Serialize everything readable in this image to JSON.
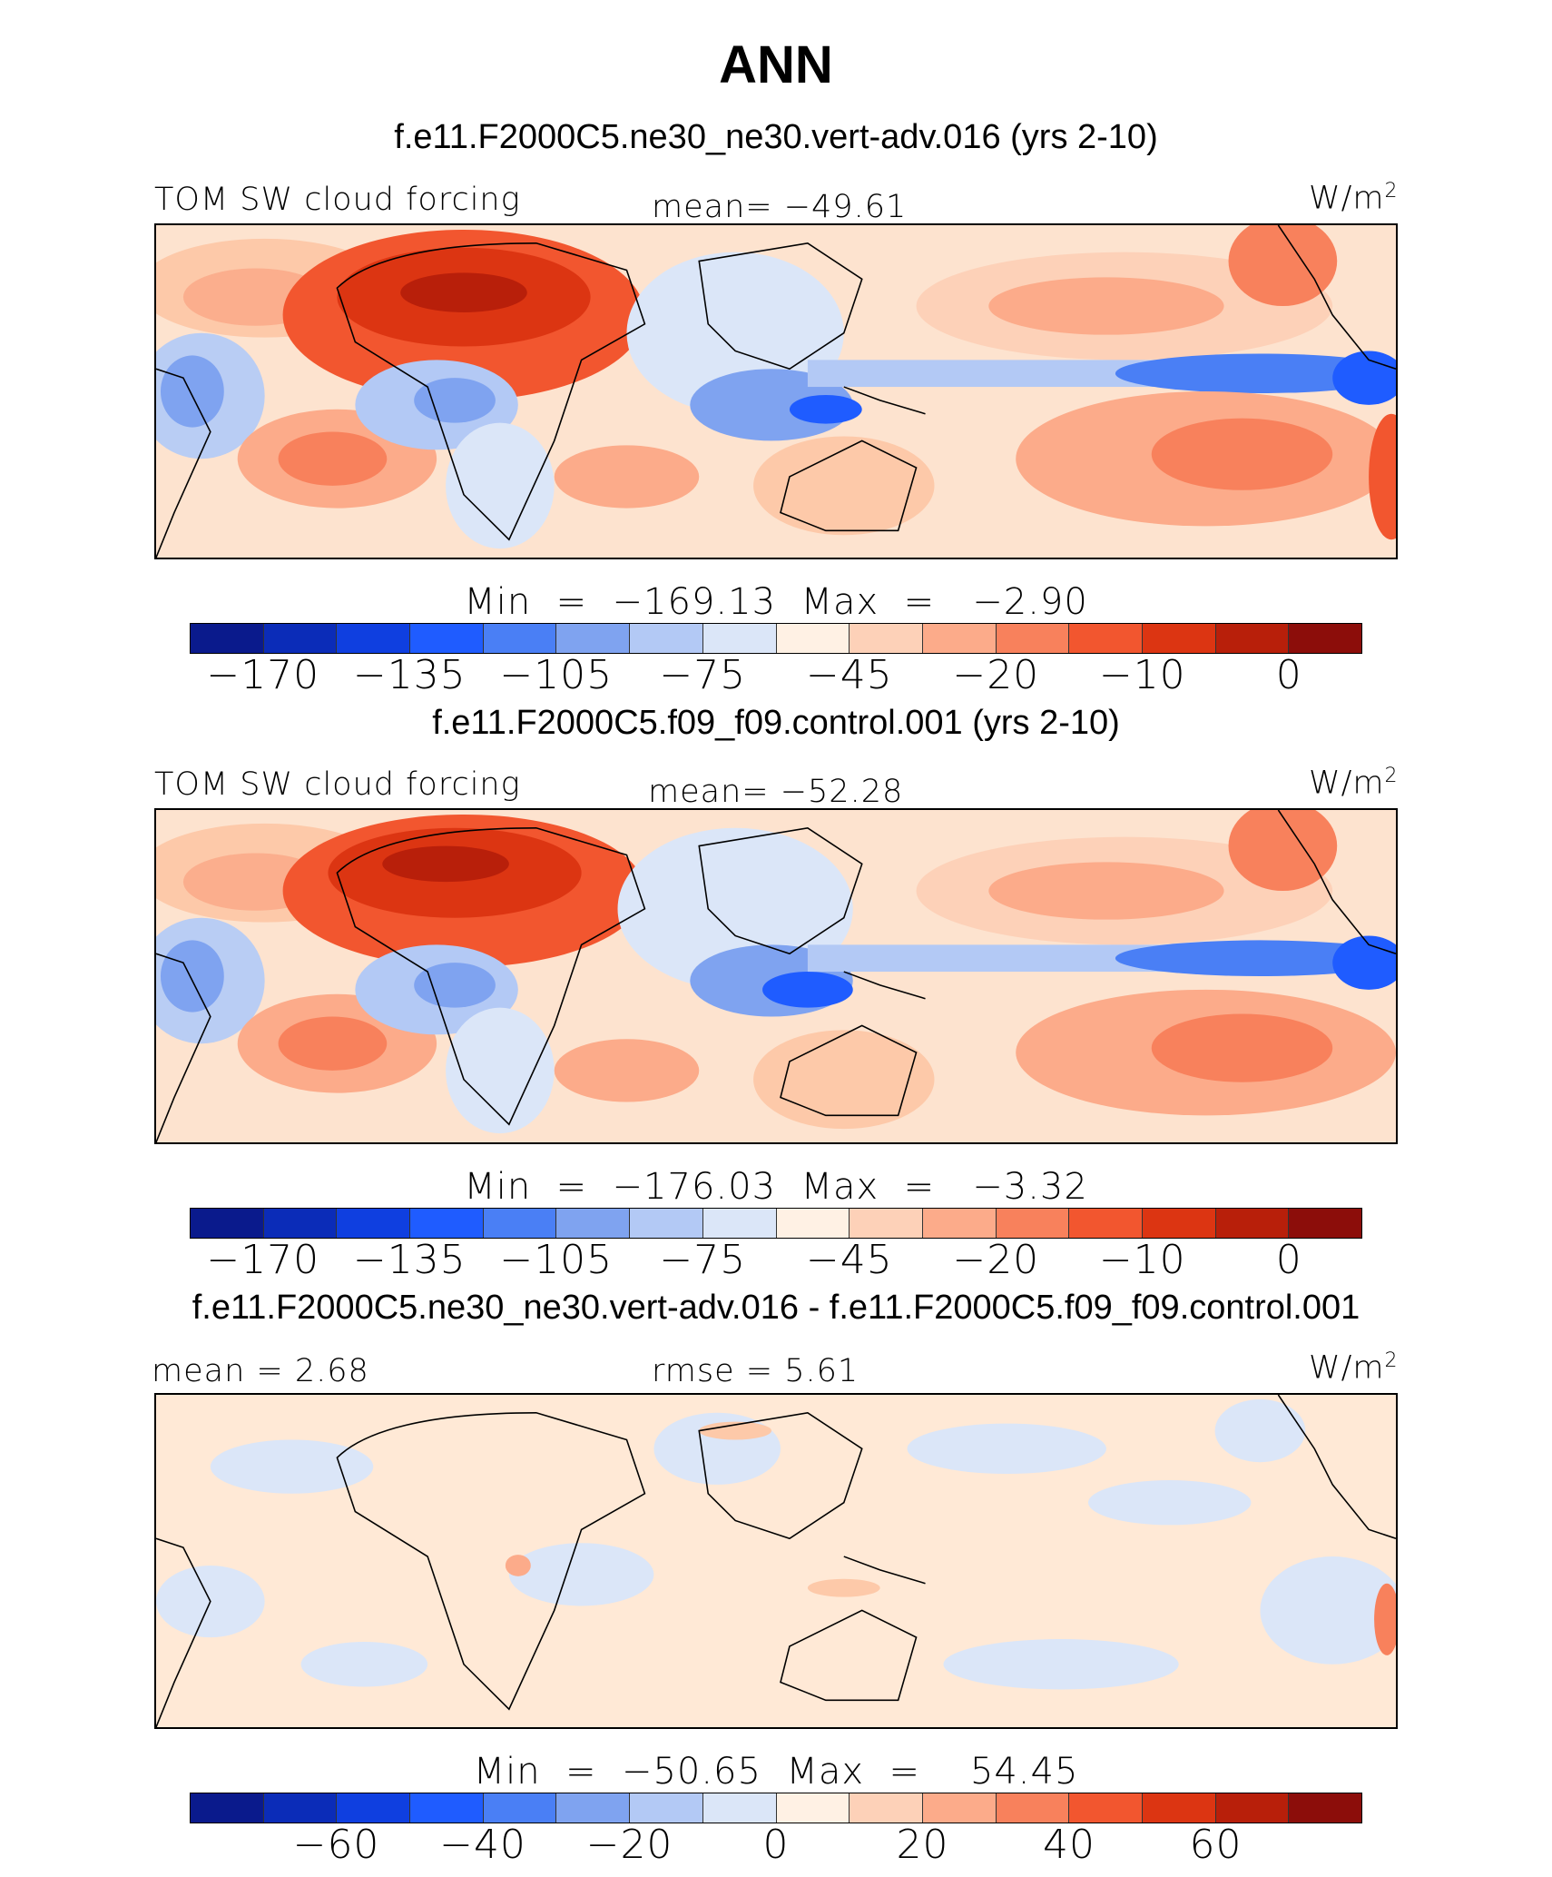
{
  "title": "ANN",
  "units_base": "W/m",
  "units_sup": "2",
  "palette": [
    "#0a1a8c",
    "#0b2cb8",
    "#0f3fe0",
    "#1f5cff",
    "#4a7ff5",
    "#7fa3f0",
    "#b3c9f5",
    "#dbe6f8",
    "#fff1e4",
    "#fdd1b8",
    "#fcab8a",
    "#f8815c",
    "#f2562f",
    "#dc3512",
    "#b81f0a",
    "#8c0d0a"
  ],
  "panels": [
    {
      "heading": "f.e11.F2000C5.ne30_ne30.vert-adv.016 (yrs 2-10)",
      "left_label": "TOM SW cloud forcing",
      "center_label": "mean= −49.61",
      "minmax": "Min  =  −169.13  Max  =   −2.90",
      "ticks": [
        "−170",
        "−135",
        "−105",
        "−75",
        "−45",
        "−20",
        "−10",
        "0"
      ]
    },
    {
      "heading": "f.e11.F2000C5.f09_f09.control.001 (yrs 2-10)",
      "left_label": "TOM SW cloud forcing",
      "center_label": "mean= −52.28",
      "minmax": "Min  =  −176.03  Max  =   −3.32",
      "ticks": [
        "−170",
        "−135",
        "−105",
        "−75",
        "−45",
        "−20",
        "−10",
        "0"
      ]
    },
    {
      "heading": "f.e11.F2000C5.ne30_ne30.vert-adv.016 - f.e11.F2000C5.f09_f09.control.001",
      "left_label": "mean  =    2.68",
      "center_label": "rmse  =    5.61",
      "minmax": "Min  =  −50.65  Max  =    54.45",
      "ticks": [
        "−60",
        "−40",
        "−20",
        "0",
        "20",
        "40",
        "60"
      ]
    }
  ]
}
